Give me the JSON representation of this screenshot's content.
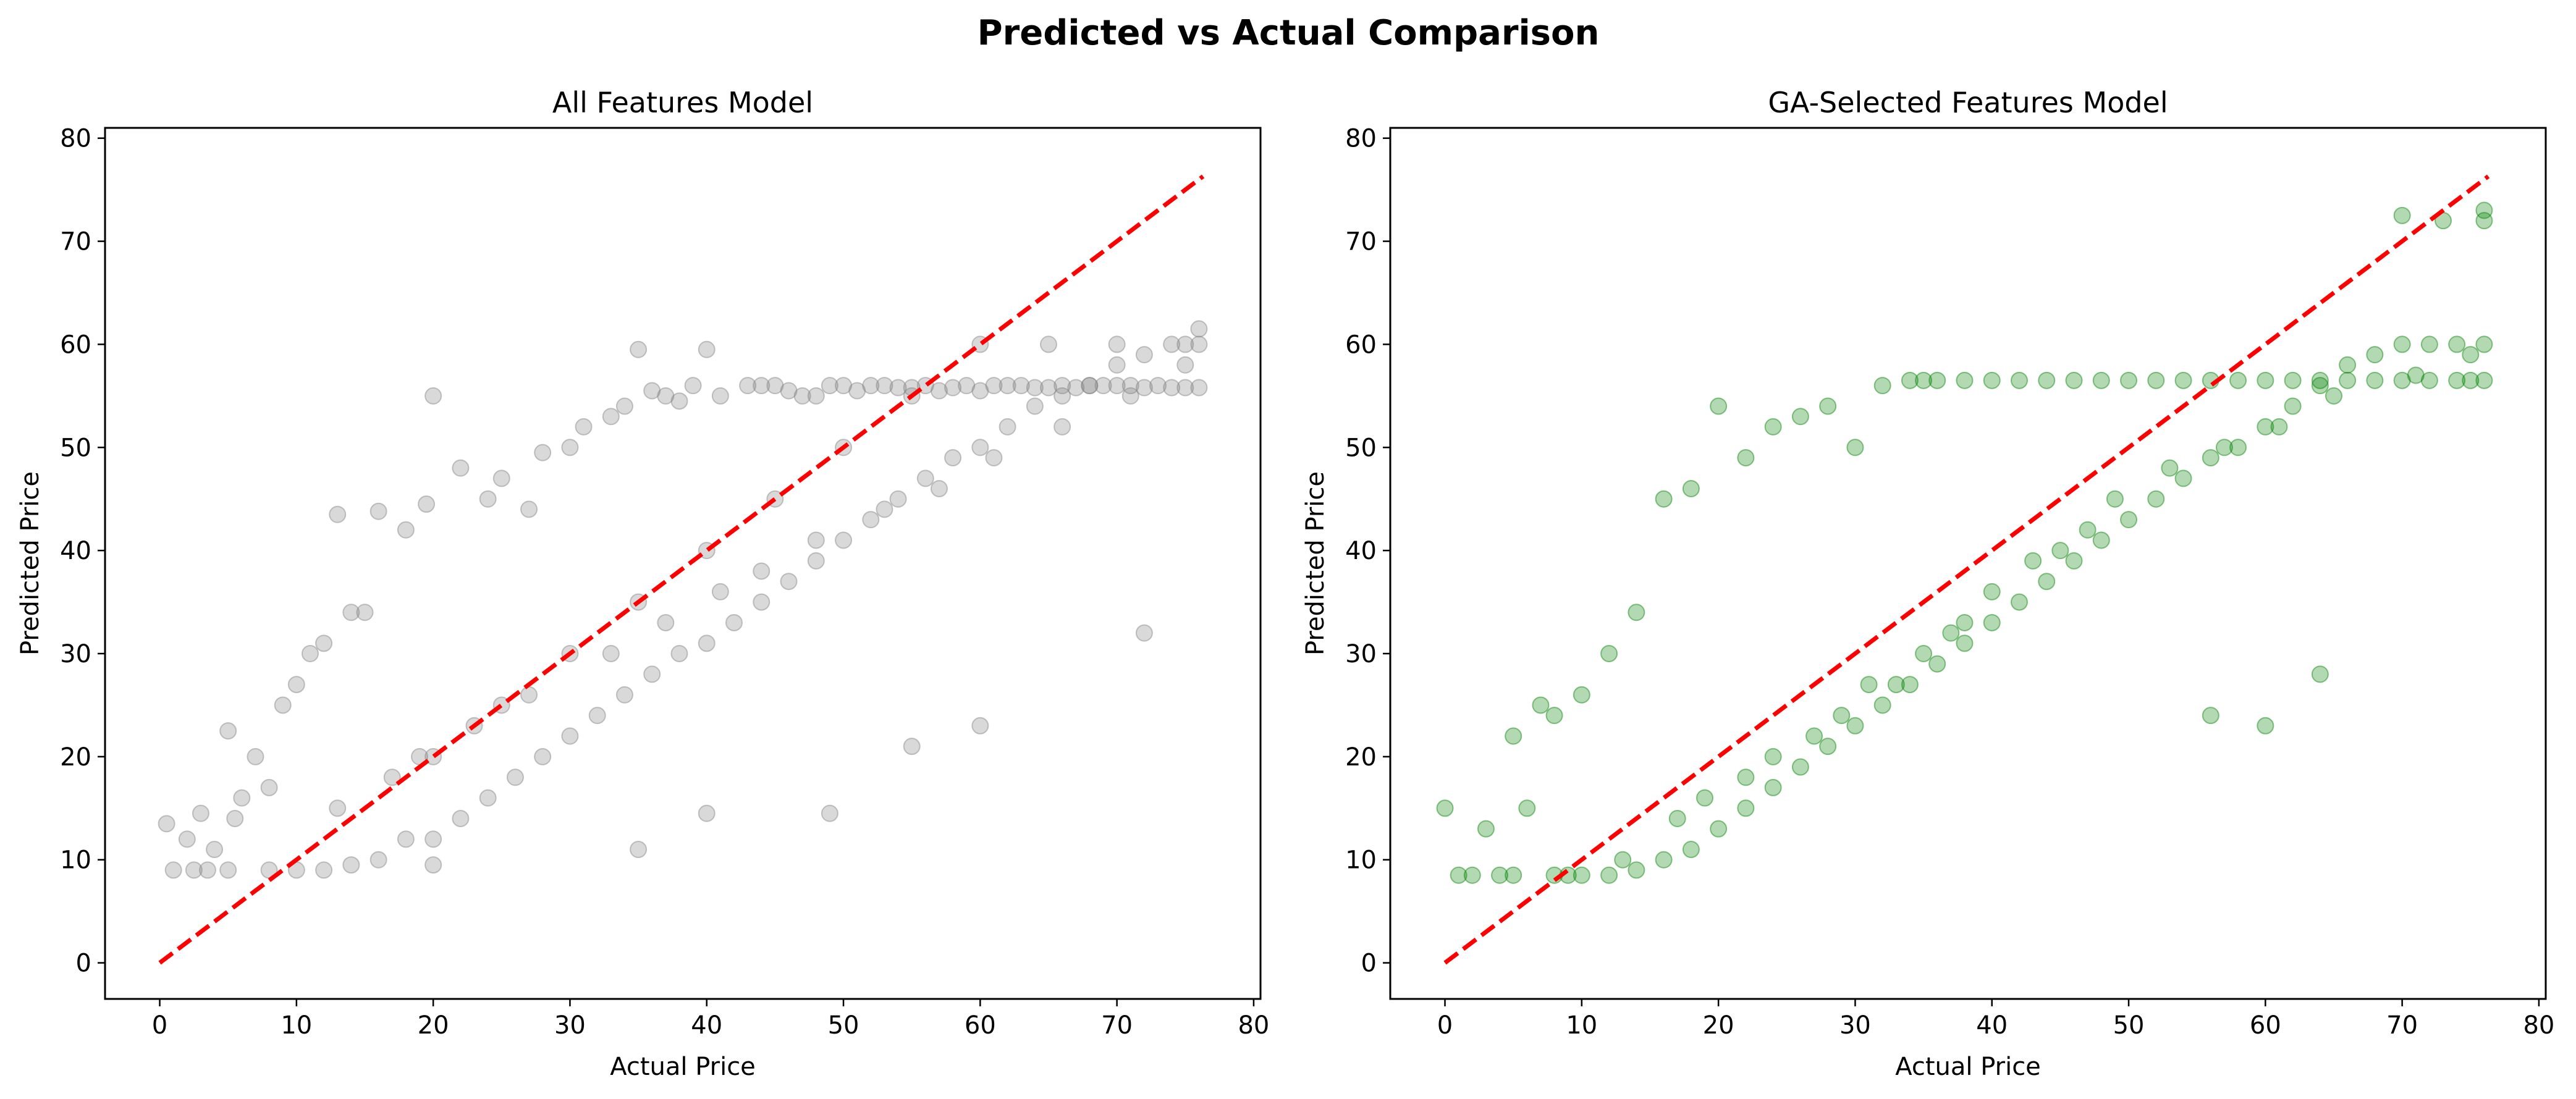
{
  "figure": {
    "suptitle": "Predicted vs Actual Comparison"
  },
  "chart_data": [
    {
      "type": "scatter",
      "title": "All Features Model",
      "xlabel": "Actual Price",
      "ylabel": "Predicted Price",
      "xlim": [
        -4,
        80.5
      ],
      "ylim": [
        -3.5,
        81
      ],
      "xticks": [
        0,
        10,
        20,
        30,
        40,
        50,
        60,
        70,
        80
      ],
      "yticks": [
        0,
        10,
        20,
        30,
        40,
        50,
        60,
        70,
        80
      ],
      "grid": false,
      "point_color": "#808080",
      "point_alpha": 0.3,
      "reference_line": {
        "x": [
          0,
          76.3
        ],
        "y": [
          0,
          76.3
        ],
        "color": "#ff0000",
        "style": "dashed"
      },
      "points_x": [
        0.5,
        1,
        2,
        2.5,
        3,
        3.5,
        4,
        5,
        5.5,
        6,
        7,
        8,
        9,
        10,
        11,
        12,
        13,
        14,
        15,
        16,
        18,
        19.5,
        20,
        22,
        24,
        25,
        27,
        28,
        30,
        31,
        33,
        34,
        35,
        36,
        37,
        38,
        39,
        40,
        41,
        43,
        44,
        45,
        46,
        47,
        48,
        49,
        50,
        51,
        52,
        53,
        54,
        55,
        56,
        57,
        58,
        59,
        60,
        61,
        62,
        63,
        64,
        65,
        66,
        67,
        68,
        69,
        70,
        71,
        72,
        73,
        74,
        75,
        76,
        76,
        5,
        8,
        10,
        12,
        14,
        16,
        18,
        20,
        22,
        24,
        26,
        28,
        30,
        32,
        34,
        36,
        38,
        40,
        42,
        44,
        46,
        48,
        50,
        52,
        54,
        56,
        58,
        60,
        62,
        64,
        66,
        68,
        70,
        72,
        74,
        76,
        20,
        25,
        30,
        35,
        40,
        45,
        50,
        55,
        60,
        65,
        70,
        75,
        13,
        17,
        19,
        23,
        27,
        33,
        37,
        41,
        44,
        48,
        53,
        57,
        61,
        66,
        71,
        75,
        35,
        40,
        49,
        55,
        60,
        72,
        20
      ],
      "points_y": [
        13.5,
        9,
        12,
        9,
        14.5,
        9,
        11,
        22.5,
        14,
        16,
        20,
        17,
        25,
        27,
        30,
        31,
        43.5,
        34,
        34,
        43.8,
        42,
        44.5,
        55,
        48,
        45,
        47,
        44,
        49.5,
        50,
        52,
        53,
        54,
        59.5,
        55.5,
        55,
        54.5,
        56,
        59.5,
        55,
        56,
        56,
        56,
        55.5,
        55,
        55,
        56,
        56,
        55.5,
        56,
        56,
        55.8,
        55.8,
        56,
        55.5,
        55.8,
        56,
        55.5,
        56,
        56,
        56,
        55.8,
        55.8,
        56,
        55.8,
        56,
        56,
        56,
        56,
        55.8,
        56,
        55.8,
        55.8,
        55.8,
        61.5,
        9,
        9,
        9,
        9,
        9.5,
        10,
        12,
        12,
        14,
        16,
        18,
        20,
        22,
        24,
        26,
        28,
        30,
        31,
        33,
        35,
        37,
        39,
        41,
        43,
        45,
        47,
        49,
        50,
        52,
        54,
        55,
        56,
        58,
        59,
        60,
        60,
        20,
        25,
        30,
        35,
        40,
        45,
        50,
        55,
        60,
        60,
        60,
        60,
        15,
        18,
        20,
        23,
        26,
        30,
        33,
        36,
        38,
        41,
        44,
        46,
        49,
        52,
        55,
        58,
        11,
        14.5,
        14.5,
        21,
        23,
        32,
        9.5
      ]
    },
    {
      "type": "scatter",
      "title": "GA-Selected Features Model",
      "xlabel": "Actual Price",
      "ylabel": "Predicted Price",
      "xlim": [
        -4,
        80.5
      ],
      "ylim": [
        -3.5,
        81
      ],
      "xticks": [
        0,
        10,
        20,
        30,
        40,
        50,
        60,
        70,
        80
      ],
      "yticks": [
        0,
        10,
        20,
        30,
        40,
        50,
        60,
        70,
        80
      ],
      "grid": false,
      "point_color": "#008000",
      "point_alpha": 0.3,
      "reference_line": {
        "x": [
          0,
          76.3
        ],
        "y": [
          0,
          76.3
        ],
        "color": "#ff0000",
        "style": "dashed"
      },
      "points_x": [
        0,
        1,
        2,
        3,
        4,
        5,
        6,
        7,
        8,
        9,
        10,
        12,
        14,
        16,
        18,
        20,
        22,
        24,
        26,
        28,
        30,
        32,
        34,
        35,
        36,
        38,
        40,
        42,
        44,
        46,
        48,
        50,
        52,
        54,
        56,
        58,
        60,
        62,
        64,
        66,
        68,
        70,
        72,
        74,
        75,
        76,
        76,
        70,
        73,
        76,
        5,
        8,
        10,
        12,
        14,
        16,
        18,
        20,
        22,
        24,
        26,
        28,
        30,
        32,
        34,
        36,
        38,
        40,
        42,
        44,
        46,
        48,
        50,
        52,
        54,
        56,
        58,
        60,
        62,
        64,
        66,
        68,
        70,
        72,
        74,
        76,
        19,
        24,
        29,
        31,
        35,
        38,
        40,
        43,
        47,
        49,
        53,
        57,
        61,
        65,
        71,
        75,
        13,
        17,
        22,
        27,
        33,
        37,
        45,
        56,
        60,
        64
      ],
      "points_y": [
        15,
        8.5,
        8.5,
        13,
        8.5,
        22,
        15,
        25,
        24,
        8.5,
        26,
        30,
        34,
        45,
        46,
        54,
        49,
        52,
        53,
        54,
        50,
        56,
        56.5,
        56.5,
        56.5,
        56.5,
        56.5,
        56.5,
        56.5,
        56.5,
        56.5,
        56.5,
        56.5,
        56.5,
        56.5,
        56.5,
        56.5,
        56.5,
        56.5,
        56.5,
        56.5,
        56.5,
        56.5,
        56.5,
        56.5,
        56.5,
        73,
        72.5,
        72,
        72,
        8.5,
        8.5,
        8.5,
        8.5,
        9,
        10,
        11,
        13,
        15,
        17,
        19,
        21,
        23,
        25,
        27,
        29,
        31,
        33,
        35,
        37,
        39,
        41,
        43,
        45,
        47,
        49,
        50,
        52,
        54,
        56,
        58,
        59,
        60,
        60,
        60,
        60,
        16,
        20,
        24,
        27,
        30,
        33,
        36,
        39,
        42,
        45,
        48,
        50,
        52,
        55,
        57,
        59,
        10,
        14,
        18,
        22,
        27,
        32,
        40,
        24,
        23,
        28
      ]
    }
  ]
}
